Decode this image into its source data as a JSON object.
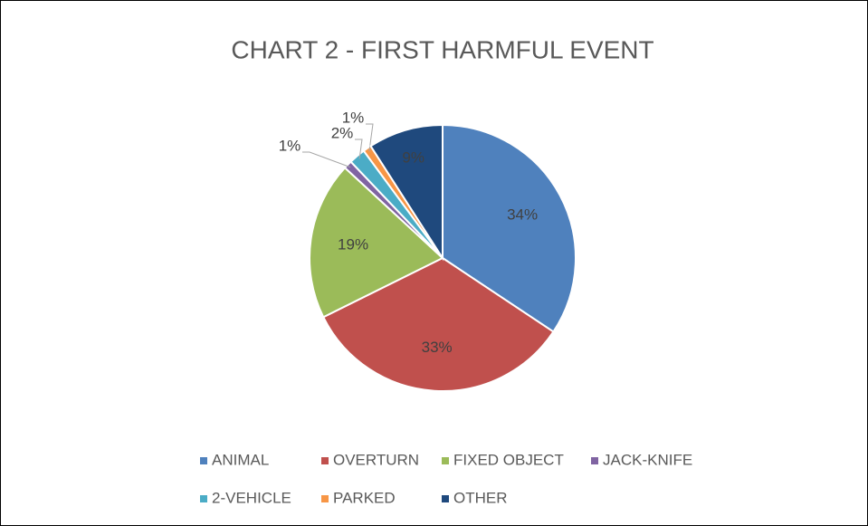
{
  "chart_data": {
    "type": "pie",
    "title": "CHART 2 - FIRST HARMFUL EVENT",
    "categories": [
      "ANIMAL",
      "OVERTURN",
      "FIXED OBJECT",
      "JACK-KNIFE",
      "2-VEHICLE",
      "PARKED",
      "OTHER"
    ],
    "values": [
      34,
      33,
      19,
      1,
      2,
      1,
      9
    ],
    "value_labels": [
      "34%",
      "33%",
      "19%",
      "1%",
      "2%",
      "1%",
      "9%"
    ],
    "colors": [
      "#4f81bd",
      "#c0504d",
      "#9bbb59",
      "#8064a2",
      "#4bacc6",
      "#f79646",
      "#1f497d"
    ],
    "legend": "bottom"
  }
}
